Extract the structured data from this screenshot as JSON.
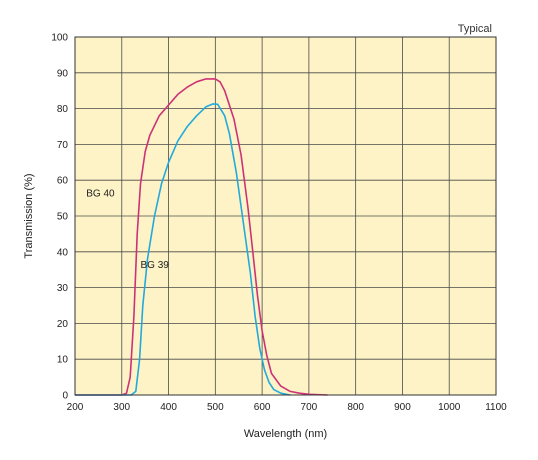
{
  "chart_data": {
    "type": "line",
    "note": "Typical",
    "xlabel": "Wavelength (nm)",
    "ylabel": "Transmission (%)",
    "xlim": [
      200,
      1100
    ],
    "ylim": [
      0,
      100
    ],
    "xticks": [
      200,
      300,
      400,
      500,
      600,
      700,
      800,
      900,
      1000,
      1100
    ],
    "yticks": [
      0,
      10,
      20,
      30,
      40,
      50,
      60,
      70,
      80,
      90,
      100
    ],
    "grid": true,
    "background": "#fdf3c6",
    "series": [
      {
        "name": "BG 40",
        "color": "#cc3377",
        "points": [
          [
            200,
            0
          ],
          [
            300,
            0
          ],
          [
            310,
            0.5
          ],
          [
            318,
            5
          ],
          [
            326,
            22
          ],
          [
            333,
            45
          ],
          [
            340,
            59
          ],
          [
            350,
            68
          ],
          [
            360,
            72.5
          ],
          [
            380,
            78
          ],
          [
            400,
            81
          ],
          [
            420,
            84
          ],
          [
            440,
            86
          ],
          [
            460,
            87.5
          ],
          [
            480,
            88.3
          ],
          [
            500,
            88.3
          ],
          [
            510,
            87.5
          ],
          [
            520,
            85
          ],
          [
            540,
            77
          ],
          [
            555,
            67
          ],
          [
            570,
            52
          ],
          [
            580,
            40
          ],
          [
            590,
            28
          ],
          [
            600,
            18
          ],
          [
            610,
            11
          ],
          [
            620,
            6
          ],
          [
            640,
            2.5
          ],
          [
            660,
            1
          ],
          [
            680,
            0.5
          ],
          [
            700,
            0.2
          ],
          [
            740,
            0
          ]
        ]
      },
      {
        "name": "BG 39",
        "color": "#22aadd",
        "points": [
          [
            200,
            0
          ],
          [
            320,
            0
          ],
          [
            330,
            1
          ],
          [
            338,
            10
          ],
          [
            345,
            25
          ],
          [
            355,
            38
          ],
          [
            370,
            50
          ],
          [
            385,
            59
          ],
          [
            400,
            65
          ],
          [
            420,
            71
          ],
          [
            440,
            75
          ],
          [
            460,
            78
          ],
          [
            480,
            80.5
          ],
          [
            495,
            81.3
          ],
          [
            505,
            81.2
          ],
          [
            520,
            78
          ],
          [
            530,
            73
          ],
          [
            545,
            62
          ],
          [
            560,
            48
          ],
          [
            575,
            34
          ],
          [
            585,
            22
          ],
          [
            595,
            13
          ],
          [
            605,
            7
          ],
          [
            615,
            3.5
          ],
          [
            625,
            1.5
          ],
          [
            640,
            0.5
          ],
          [
            660,
            0
          ]
        ]
      }
    ]
  }
}
